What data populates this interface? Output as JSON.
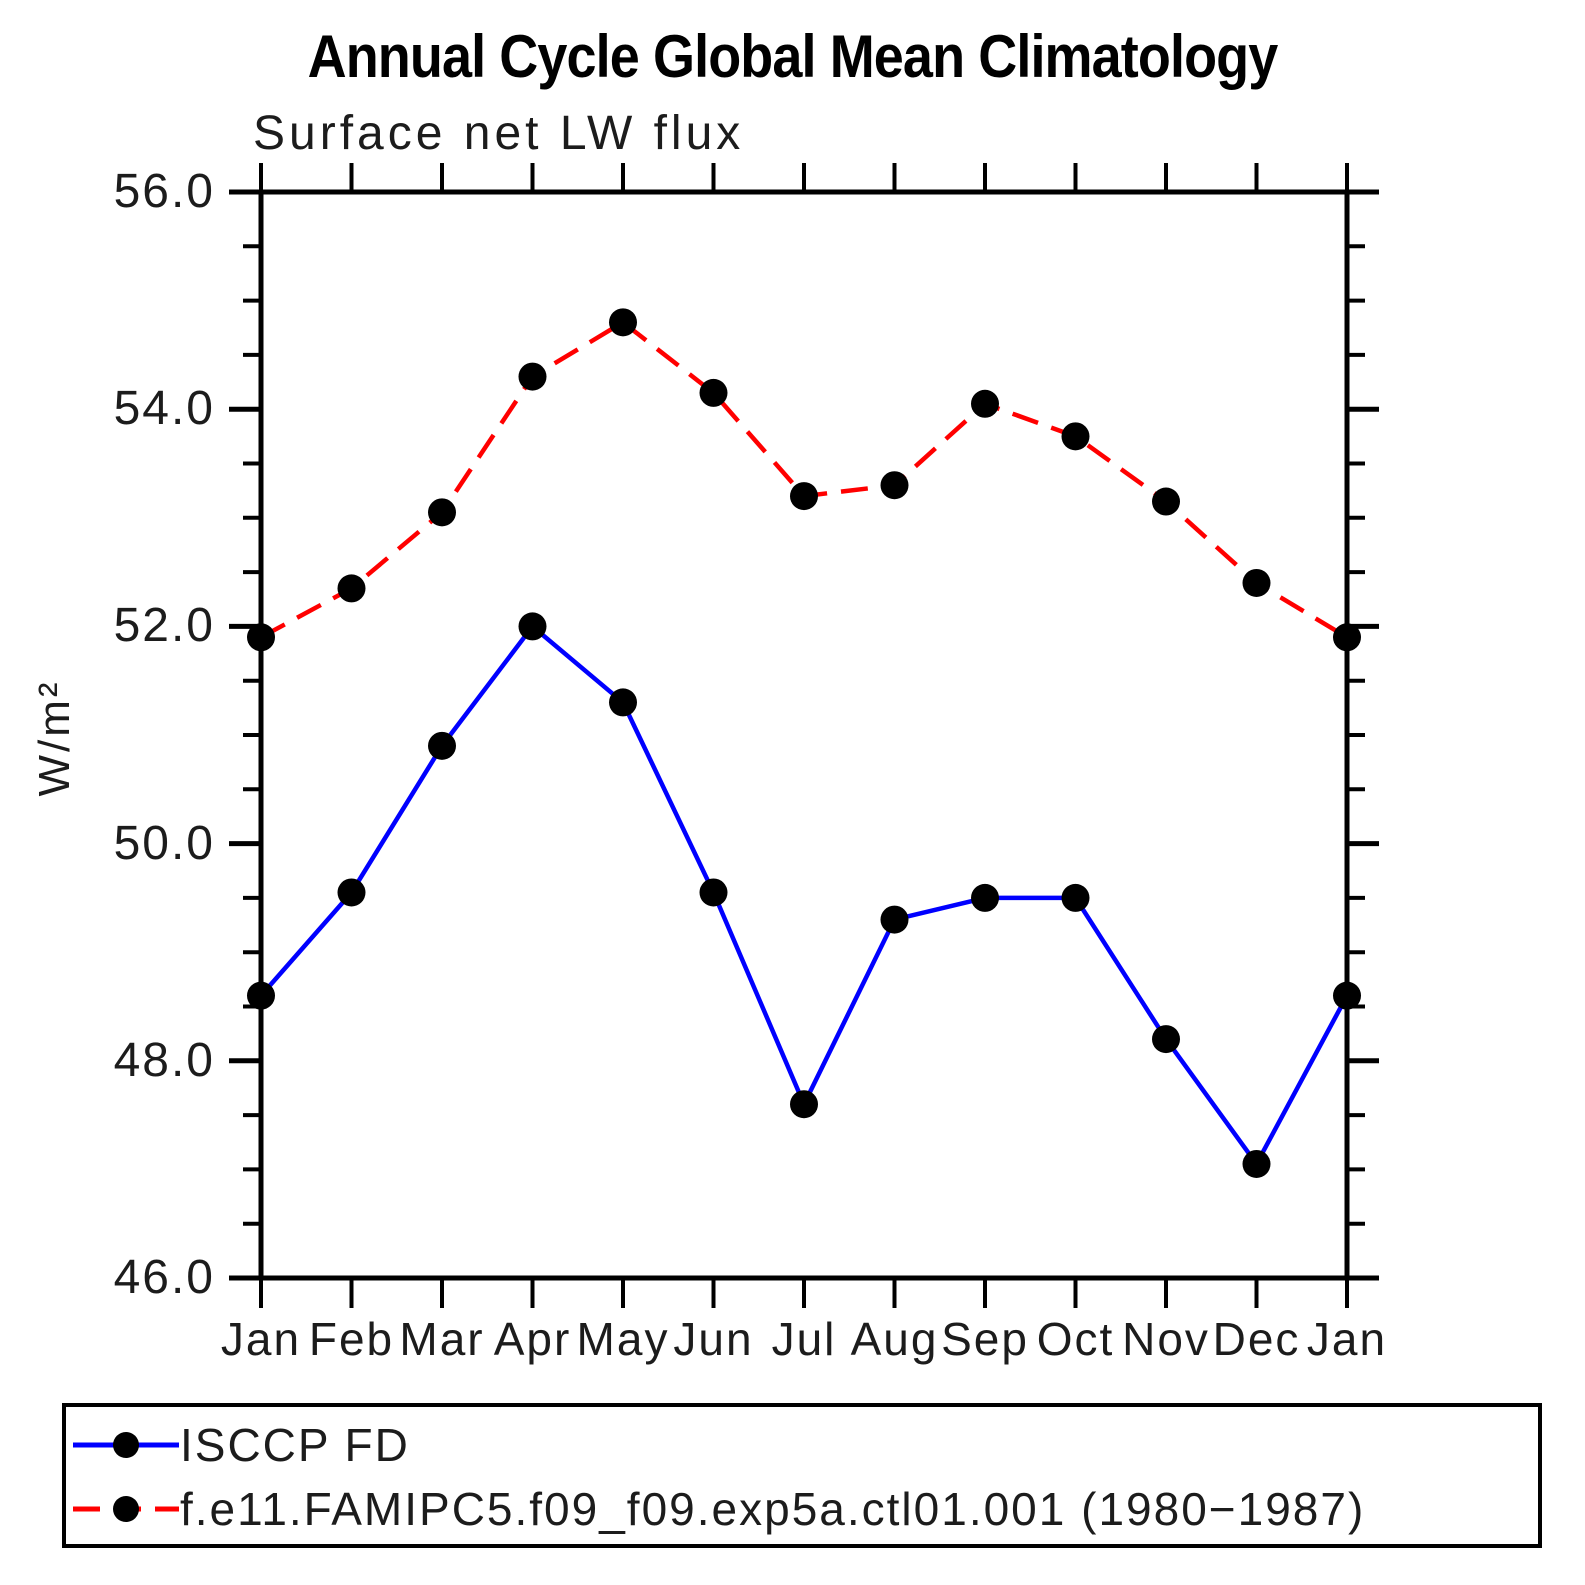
{
  "title": "Annual Cycle Global Mean Climatology",
  "subtitle": "Surface net LW flux",
  "y_axis": {
    "label": "W/m²",
    "tick_labels": [
      "56.0",
      "54.0",
      "52.0",
      "50.0",
      "48.0",
      "46.0"
    ],
    "tick_values": [
      56,
      54,
      52,
      50,
      48,
      46
    ],
    "minor_step": 0.5,
    "range": [
      46,
      56
    ]
  },
  "x_axis": {
    "tick_labels": [
      "Jan",
      "Feb",
      "Mar",
      "Apr",
      "May",
      "Jun",
      "Jul",
      "Aug",
      "Sep",
      "Oct",
      "Nov",
      "Dec",
      "Jan"
    ]
  },
  "legend": {
    "entries": [
      {
        "label": "ISCCP FD",
        "color": "#0000ff",
        "style": "solid"
      },
      {
        "label": "f.e11.FAMIPC5.f09_f09.exp5a.ctl01.001 (1980−1987)",
        "color": "#ff0000",
        "style": "dashed"
      }
    ],
    "marker_color": "#000000"
  },
  "colors": {
    "series1": "#0000ff",
    "series2": "#ff0000",
    "axis": "#000000",
    "marker": "#000000"
  },
  "chart_data": {
    "type": "line",
    "title": "Annual Cycle Global Mean Climatology",
    "subtitle": "Surface net LW flux",
    "ylabel": "W/m²",
    "ylim": [
      46,
      56
    ],
    "ytick_interval": 2,
    "minor_tick_interval": 0.5,
    "grid": false,
    "legend_position": "bottom",
    "categories": [
      "Jan",
      "Feb",
      "Mar",
      "Apr",
      "May",
      "Jun",
      "Jul",
      "Aug",
      "Sep",
      "Oct",
      "Nov",
      "Dec",
      "Jan"
    ],
    "series": [
      {
        "name": "ISCCP FD",
        "color": "#0000ff",
        "line_style": "solid",
        "marker": "circle",
        "marker_color": "#000000",
        "values": [
          48.6,
          49.55,
          50.9,
          52.0,
          51.3,
          49.55,
          47.6,
          49.3,
          49.5,
          49.5,
          48.2,
          47.05,
          48.6
        ]
      },
      {
        "name": "f.e11.FAMIPC5.f09_f09.exp5a.ctl01.001 (1980−1987)",
        "color": "#ff0000",
        "line_style": "dashed",
        "marker": "circle",
        "marker_color": "#000000",
        "values": [
          51.9,
          52.35,
          53.05,
          54.3,
          54.8,
          54.15,
          53.2,
          53.3,
          54.05,
          53.75,
          53.15,
          52.4,
          51.9
        ]
      }
    ]
  }
}
